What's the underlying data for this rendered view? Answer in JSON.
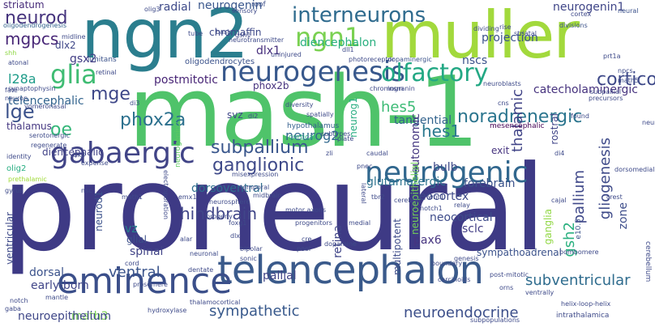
{
  "words": [
    {
      "text": "proneural",
      "color": "#3e3a85"
    },
    {
      "text": "mash-1",
      "color": "#4fc36a"
    },
    {
      "text": "muller",
      "color": "#a2d93c"
    },
    {
      "text": "ngn2",
      "color": "#2b7e8e"
    },
    {
      "text": "telencephalon",
      "color": "#3a5a8b"
    },
    {
      "text": "eminence",
      "color": "#3b4f8a"
    },
    {
      "text": "neurogenic",
      "color": "#31678e"
    },
    {
      "text": "gabaergic",
      "color": "#414487"
    },
    {
      "text": "neurogenesis",
      "color": "#38588c"
    },
    {
      "text": "ngn1",
      "color": "#7ad151"
    },
    {
      "text": "glia",
      "color": "#3fbc73"
    },
    {
      "text": "olfactory",
      "color": "#23a884"
    },
    {
      "text": "interneurons",
      "color": "#2f6b8e"
    },
    {
      "text": "neurod",
      "color": "#45337d"
    },
    {
      "text": "mgpcs",
      "color": "#482777"
    },
    {
      "text": "striatum",
      "color": "#472c7a"
    },
    {
      "text": "oligodendrogenesis",
      "color": "#33638d"
    },
    {
      "text": "dlx2",
      "color": "#3f4788"
    },
    {
      "text": "shh",
      "color": "#8fd744"
    },
    {
      "text": "gsx2",
      "color": "#433e85"
    },
    {
      "text": "l28a",
      "color": "#1e9c89"
    },
    {
      "text": "neurogenin",
      "color": "#39568c"
    },
    {
      "text": "radial",
      "color": "#3e4a89"
    },
    {
      "text": "diencephalon",
      "color": "#29af7f"
    },
    {
      "text": "dlx1",
      "color": "#472f7d"
    },
    {
      "text": "neurogenin1",
      "color": "#404688"
    },
    {
      "text": "neurog2",
      "color": "#31688e"
    },
    {
      "text": "nscs",
      "color": "#3b528b"
    },
    {
      "text": "corticogenesis",
      "color": "#3e4989"
    },
    {
      "text": "lge",
      "color": "#3b528b"
    },
    {
      "text": "telencephalic",
      "color": "#32648e"
    },
    {
      "text": "thalamus",
      "color": "#453882"
    },
    {
      "text": "mge",
      "color": "#3f4889"
    },
    {
      "text": "phox2a",
      "color": "#2d718e"
    },
    {
      "text": "oe",
      "color": "#35b779"
    },
    {
      "text": "noradrenergic",
      "color": "#2b758e"
    },
    {
      "text": "hes1",
      "color": "#2a788e"
    },
    {
      "text": "hes5",
      "color": "#3cbb75"
    },
    {
      "text": "tangential",
      "color": "#33638d"
    },
    {
      "text": "thalamic",
      "color": "#414487"
    },
    {
      "text": "subpallium",
      "color": "#39568c"
    },
    {
      "text": "ganglionic",
      "color": "#3e4989"
    },
    {
      "text": "gliogenesis",
      "color": "#3e4a89"
    },
    {
      "text": "pallium",
      "color": "#3f4889"
    },
    {
      "text": "glutamatergic",
      "color": "#2c728e"
    },
    {
      "text": "neocortex",
      "color": "#3e4a89"
    },
    {
      "text": "dorsoventral",
      "color": "#2e6e8e"
    },
    {
      "text": "forebrain",
      "color": "#3b528b"
    },
    {
      "text": "hindbrain",
      "color": "#404688"
    },
    {
      "text": "vz",
      "color": "#26828e"
    },
    {
      "text": "spinal",
      "color": "#414487"
    },
    {
      "text": "retina",
      "color": "#404588"
    },
    {
      "text": "ventral",
      "color": "#3a548c"
    },
    {
      "text": "sympathetic",
      "color": "#38598c"
    },
    {
      "text": "neuroendocrine",
      "color": "#3c4f8a"
    },
    {
      "text": "subventricular",
      "color": "#2f6c8e"
    },
    {
      "text": "gsh2",
      "color": "#2ab07f"
    },
    {
      "text": "math3",
      "color": "#7ad151"
    },
    {
      "text": "neuroepithelium",
      "color": "#3f4788"
    },
    {
      "text": "early-born",
      "color": "#404588"
    },
    {
      "text": "dorsal",
      "color": "#3b528b"
    },
    {
      "text": "pallial",
      "color": "#414487"
    },
    {
      "text": "neocortical",
      "color": "#3e4c8a"
    },
    {
      "text": "sclc",
      "color": "#433e85"
    },
    {
      "text": "pax6",
      "color": "#463480"
    },
    {
      "text": "bulb",
      "color": "#3e4a89"
    },
    {
      "text": "autonomic",
      "color": "#453781"
    },
    {
      "text": "neurog1",
      "color": "#27ad81"
    },
    {
      "text": "phox2b",
      "color": "#46327e"
    },
    {
      "text": "postmitotic",
      "color": "#482576"
    },
    {
      "text": "oligodendrocytes",
      "color": "#3b528b"
    },
    {
      "text": "chromaffin",
      "color": "#3e4989"
    },
    {
      "text": "roof",
      "color": "#3c4f8a"
    },
    {
      "text": "catecholaminergic",
      "color": "#46327e"
    },
    {
      "text": "projection",
      "color": "#3b528b"
    },
    {
      "text": "zone",
      "color": "#3d4d8a"
    },
    {
      "text": "ganglia",
      "color": "#90d743"
    },
    {
      "text": "multipotent",
      "color": "#3e4c8a"
    },
    {
      "text": "rostral",
      "color": "#404588"
    },
    {
      "text": "diencephalic",
      "color": "#414287"
    },
    {
      "text": "olig2",
      "color": "#26ad81"
    },
    {
      "text": "svz",
      "color": "#3f4788"
    },
    {
      "text": "exit",
      "color": "#46337f"
    },
    {
      "text": "glial",
      "color": "#3c4f8a"
    },
    {
      "text": "neurod1",
      "color": "#3b518b"
    },
    {
      "text": "ventricular",
      "color": "#3e4a89"
    },
    {
      "text": "neuroepithelial",
      "color": "#73d056"
    },
    {
      "text": "sympathoadrenal",
      "color": "#3b528b"
    },
    {
      "text": "e10.5",
      "color": "#3b528b"
    },
    {
      "text": "mesencephalic",
      "color": "#440154"
    },
    {
      "text": "neurogenin2",
      "color": "#5ec962"
    },
    {
      "text": "hypothalamus",
      "color": "#35608d"
    },
    {
      "text": "cortical",
      "color": "#2ab07f"
    },
    {
      "text": "cortex",
      "color": "#3e4989"
    },
    {
      "text": "neural",
      "color": "#3b528b"
    },
    {
      "text": "divisions",
      "color": "#3b528b"
    },
    {
      "text": "limitans",
      "color": "#3b528b"
    },
    {
      "text": "uninjured",
      "color": "#3e4a89"
    },
    {
      "text": "dopaminergic",
      "color": "#3b528b"
    },
    {
      "text": "chromogranin",
      "color": "#3e4989"
    },
    {
      "text": "insm",
      "color": "#3e4a89"
    },
    {
      "text": "neurotransmitter",
      "color": "#3e4a89"
    },
    {
      "text": "regenerate",
      "color": "#3e4a89"
    },
    {
      "text": "serotonergic",
      "color": "#3e4a89"
    },
    {
      "text": "vomeronasal",
      "color": "#3e4a89"
    },
    {
      "text": "synaptophysin",
      "color": "#3e4a89"
    },
    {
      "text": "atonal",
      "color": "#3e4a89"
    },
    {
      "text": "fate",
      "color": "#3e4a89"
    },
    {
      "text": "neuron",
      "color": "#3e4a89"
    },
    {
      "text": "midline",
      "color": "#3e4a89"
    },
    {
      "text": "identity",
      "color": "#3e4a89"
    },
    {
      "text": "tlx3",
      "color": "#3e4a89"
    },
    {
      "text": "expense",
      "color": "#3e4a89"
    },
    {
      "text": "prethalamic",
      "color": "#a0da39"
    },
    {
      "text": "gyrus",
      "color": "#3e4a89"
    },
    {
      "text": "nsc",
      "color": "#3e4a89"
    },
    {
      "text": "math1",
      "color": "#3e4a89"
    },
    {
      "text": "progeny",
      "color": "#3e4a89"
    },
    {
      "text": "foxg1",
      "color": "#3e4a89"
    },
    {
      "text": "dlx",
      "color": "#3e4a89"
    },
    {
      "text": "alar",
      "color": "#3e4a89"
    },
    {
      "text": "bipolar",
      "color": "#3e4a89"
    },
    {
      "text": "sonic",
      "color": "#3e4a89"
    },
    {
      "text": "cord",
      "color": "#3e4a89"
    },
    {
      "text": "dentate",
      "color": "#3e4a89"
    },
    {
      "text": "prosomere",
      "color": "#3e4a89"
    },
    {
      "text": "thalamocortical",
      "color": "#3e4a89"
    },
    {
      "text": "notch",
      "color": "#3e4a89"
    },
    {
      "text": "gaba",
      "color": "#3e4a89"
    },
    {
      "text": "mantle",
      "color": "#3e4a89"
    },
    {
      "text": "cre",
      "color": "#3e4a89"
    },
    {
      "text": "progenitors",
      "color": "#3e4a89"
    },
    {
      "text": "dopamine",
      "color": "#3e4a89"
    },
    {
      "text": "medial",
      "color": "#3e4a89"
    },
    {
      "text": "midbrain",
      "color": "#3e4a89"
    },
    {
      "text": "motor axons",
      "color": "#3e4a89"
    },
    {
      "text": "emx1",
      "color": "#3e4a89"
    },
    {
      "text": "neurosphere",
      "color": "#3e4a89"
    },
    {
      "text": "temporal",
      "color": "#3e4a89"
    },
    {
      "text": "carcinoids",
      "color": "#3e4a89"
    },
    {
      "text": "boundary",
      "color": "#3e4a89"
    },
    {
      "text": "genesis",
      "color": "#3e4a89"
    },
    {
      "text": "post-mitotic",
      "color": "#3e4a89"
    },
    {
      "text": "orns",
      "color": "#3e4a89"
    },
    {
      "text": "intrathalamica",
      "color": "#3e4a89"
    },
    {
      "text": "helix-loop-helix",
      "color": "#3e4a89"
    },
    {
      "text": "subpopulations",
      "color": "#3e4a89"
    },
    {
      "text": "hydroxylase",
      "color": "#3e4a89"
    },
    {
      "text": "notch1",
      "color": "#3e4a89"
    },
    {
      "text": "cerebral",
      "color": "#3e4a89"
    },
    {
      "text": "wnt1",
      "color": "#3e4a89"
    },
    {
      "text": "tbr2",
      "color": "#3e4a89"
    },
    {
      "text": "pnec",
      "color": "#3e4a89"
    },
    {
      "text": "zli",
      "color": "#3e4a89"
    },
    {
      "text": "plate",
      "color": "#3e4a89"
    },
    {
      "text": "cns",
      "color": "#3e4a89"
    },
    {
      "text": "di2",
      "color": "#3e4a89"
    },
    {
      "text": "dll1",
      "color": "#3e4a89"
    },
    {
      "text": "photoreceptor",
      "color": "#3e4a89"
    },
    {
      "text": "neuroblasts",
      "color": "#3e4a89"
    },
    {
      "text": "subpallial",
      "color": "#3e4a89"
    },
    {
      "text": "precursors",
      "color": "#3e4a89"
    },
    {
      "text": "math5",
      "color": "#3e4a89"
    },
    {
      "text": "npcs",
      "color": "#3e4a89"
    },
    {
      "text": "prt1a",
      "color": "#3e4a89"
    },
    {
      "text": "dividing",
      "color": "#3e4a89"
    },
    {
      "text": "rise",
      "color": "#3e4a89"
    },
    {
      "text": "striatal",
      "color": "#3e4a89"
    },
    {
      "text": "subtypes",
      "color": "#3e4a89"
    },
    {
      "text": "caudal",
      "color": "#3e4a89"
    },
    {
      "text": "spatially",
      "color": "#3e4a89"
    },
    {
      "text": "diversity",
      "color": "#3e4a89"
    },
    {
      "text": "cerebellum",
      "color": "#3e4a89"
    },
    {
      "text": "electroporation",
      "color": "#3e4a89"
    },
    {
      "text": "dorsomedial",
      "color": "#3e4a89"
    },
    {
      "text": "cajal",
      "color": "#3e4a89"
    },
    {
      "text": "crest",
      "color": "#3e4a89"
    },
    {
      "text": "relay",
      "color": "#3e4a89"
    },
    {
      "text": "pool",
      "color": "#3e4a89"
    },
    {
      "text": "lateral",
      "color": "#3e4a89"
    },
    {
      "text": "misexpression",
      "color": "#3e4a89"
    },
    {
      "text": "found",
      "color": "#3e4a89"
    },
    {
      "text": "neurite",
      "color": "#3e4a89"
    },
    {
      "text": "sensory",
      "color": "#3e4a89"
    },
    {
      "text": "olig3",
      "color": "#3e4a89"
    },
    {
      "text": "tube",
      "color": "#3e4a89"
    },
    {
      "text": "basic",
      "color": "#3e4a89"
    },
    {
      "text": "gsh1",
      "color": "#3e4a89"
    },
    {
      "text": "retinal",
      "color": "#3e4a89"
    },
    {
      "text": "di3",
      "color": "#3e4a89"
    },
    {
      "text": "ventrally",
      "color": "#3e4a89"
    },
    {
      "text": "bombomere",
      "color": "#3e4a89"
    },
    {
      "text": "neuronal",
      "color": "#3e4a89"
    },
    {
      "text": "di4",
      "color": "#3e4a89"
    },
    {
      "text": "ob",
      "color": "#3e4a89"
    }
  ]
}
